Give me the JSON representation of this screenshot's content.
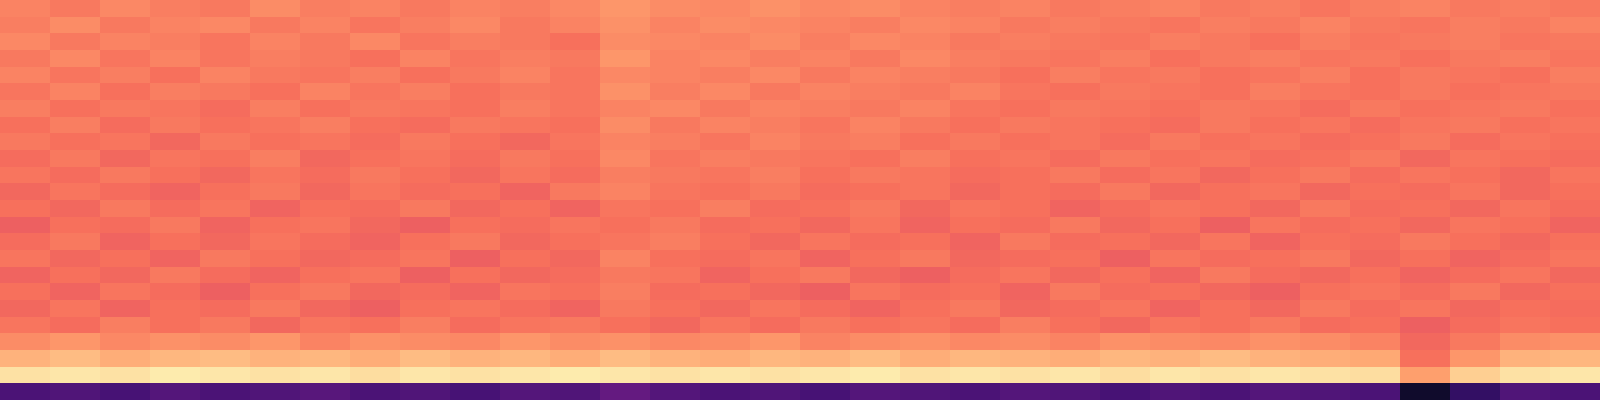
{
  "chart_data": {
    "type": "heatmap",
    "zlim": [
      0,
      1
    ],
    "tick_labels": false,
    "cells": [
      [
        0.24,
        0.25,
        0.23,
        0.26,
        0.24,
        0.25,
        0.27,
        0.24,
        0.25,
        0.23,
        0.26,
        0.25,
        0.3,
        0.26,
        0.24,
        0.25,
        0.23,
        0.26,
        0.25,
        0.24,
        0.26,
        0.25,
        0.23,
        0.25,
        0.24,
        0.26,
        0.25,
        0.24,
        0.08,
        0.18,
        0.25,
        0.24
      ],
      [
        0.94,
        0.95,
        0.94,
        0.96,
        0.95,
        0.94,
        0.95,
        0.93,
        0.95,
        0.94,
        0.95,
        0.96,
        0.95,
        0.94,
        0.95,
        0.94,
        0.95,
        0.96,
        0.94,
        0.95,
        0.94,
        0.95,
        0.93,
        0.95,
        0.94,
        0.95,
        0.94,
        0.93,
        0.8,
        0.9,
        0.94,
        0.95
      ],
      [
        0.84,
        0.86,
        0.83,
        0.85,
        0.86,
        0.84,
        0.85,
        0.83,
        0.86,
        0.84,
        0.85,
        0.83,
        0.86,
        0.84,
        0.83,
        0.85,
        0.84,
        0.86,
        0.83,
        0.85,
        0.84,
        0.83,
        0.85,
        0.84,
        0.86,
        0.84,
        0.83,
        0.82,
        0.7,
        0.78,
        0.84,
        0.85
      ],
      [
        0.76,
        0.78,
        0.75,
        0.77,
        0.76,
        0.78,
        0.74,
        0.77,
        0.76,
        0.75,
        0.78,
        0.76,
        0.77,
        0.75,
        0.76,
        0.78,
        0.74,
        0.76,
        0.77,
        0.75,
        0.76,
        0.74,
        0.77,
        0.76,
        0.75,
        0.77,
        0.76,
        0.74,
        0.68,
        0.72,
        0.76,
        0.77
      ],
      [
        0.71,
        0.69,
        0.73,
        0.7,
        0.72,
        0.68,
        0.71,
        0.7,
        0.73,
        0.69,
        0.71,
        0.72,
        0.7,
        0.68,
        0.71,
        0.69,
        0.72,
        0.7,
        0.71,
        0.69,
        0.73,
        0.7,
        0.68,
        0.71,
        0.7,
        0.72,
        0.69,
        0.7,
        0.66,
        0.69,
        0.71,
        0.7
      ],
      [
        0.68,
        0.71,
        0.67,
        0.7,
        0.69,
        0.72,
        0.68,
        0.66,
        0.7,
        0.71,
        0.69,
        0.67,
        0.72,
        0.7,
        0.68,
        0.71,
        0.69,
        0.67,
        0.7,
        0.72,
        0.68,
        0.69,
        0.71,
        0.67,
        0.7,
        0.68,
        0.72,
        0.69,
        0.71,
        0.68,
        0.7,
        0.69
      ],
      [
        0.7,
        0.67,
        0.71,
        0.69,
        0.66,
        0.7,
        0.72,
        0.68,
        0.69,
        0.67,
        0.71,
        0.7,
        0.73,
        0.69,
        0.7,
        0.68,
        0.66,
        0.71,
        0.69,
        0.7,
        0.67,
        0.72,
        0.69,
        0.7,
        0.68,
        0.66,
        0.7,
        0.71,
        0.69,
        0.72,
        0.68,
        0.7
      ],
      [
        0.67,
        0.7,
        0.68,
        0.72,
        0.69,
        0.67,
        0.7,
        0.71,
        0.66,
        0.7,
        0.68,
        0.69,
        0.72,
        0.71,
        0.67,
        0.7,
        0.72,
        0.68,
        0.66,
        0.69,
        0.71,
        0.68,
        0.7,
        0.67,
        0.72,
        0.69,
        0.68,
        0.7,
        0.67,
        0.69,
        0.71,
        0.68
      ],
      [
        0.71,
        0.68,
        0.7,
        0.67,
        0.72,
        0.7,
        0.68,
        0.69,
        0.71,
        0.66,
        0.7,
        0.68,
        0.74,
        0.7,
        0.69,
        0.71,
        0.67,
        0.7,
        0.72,
        0.68,
        0.69,
        0.7,
        0.66,
        0.71,
        0.69,
        0.7,
        0.72,
        0.68,
        0.7,
        0.67,
        0.69,
        0.71
      ],
      [
        0.69,
        0.72,
        0.67,
        0.7,
        0.68,
        0.71,
        0.69,
        0.67,
        0.7,
        0.72,
        0.68,
        0.7,
        0.71,
        0.73,
        0.7,
        0.68,
        0.71,
        0.69,
        0.7,
        0.67,
        0.72,
        0.69,
        0.7,
        0.68,
        0.71,
        0.67,
        0.7,
        0.69,
        0.72,
        0.7,
        0.68,
        0.7
      ],
      [
        0.66,
        0.7,
        0.69,
        0.72,
        0.67,
        0.7,
        0.71,
        0.68,
        0.66,
        0.7,
        0.69,
        0.71,
        0.7,
        0.72,
        0.69,
        0.7,
        0.68,
        0.71,
        0.67,
        0.7,
        0.69,
        0.72,
        0.68,
        0.7,
        0.66,
        0.71,
        0.69,
        0.7,
        0.68,
        0.71,
        0.7,
        0.67
      ],
      [
        0.7,
        0.68,
        0.72,
        0.69,
        0.71,
        0.67,
        0.7,
        0.69,
        0.72,
        0.68,
        0.7,
        0.67,
        0.71,
        0.7,
        0.73,
        0.69,
        0.7,
        0.72,
        0.68,
        0.71,
        0.7,
        0.67,
        0.69,
        0.71,
        0.7,
        0.68,
        0.72,
        0.69,
        0.7,
        0.68,
        0.71,
        0.69
      ],
      [
        0.68,
        0.71,
        0.69,
        0.67,
        0.7,
        0.72,
        0.68,
        0.71,
        0.69,
        0.7,
        0.67,
        0.72,
        0.74,
        0.71,
        0.7,
        0.72,
        0.69,
        0.7,
        0.71,
        0.68,
        0.7,
        0.69,
        0.72,
        0.68,
        0.7,
        0.71,
        0.68,
        0.7,
        0.69,
        0.71,
        0.68,
        0.7
      ],
      [
        0.71,
        0.69,
        0.72,
        0.7,
        0.68,
        0.71,
        0.69,
        0.72,
        0.7,
        0.68,
        0.71,
        0.69,
        0.73,
        0.72,
        0.71,
        0.73,
        0.7,
        0.72,
        0.71,
        0.69,
        0.7,
        0.72,
        0.69,
        0.71,
        0.68,
        0.7,
        0.72,
        0.69,
        0.71,
        0.7,
        0.68,
        0.71
      ],
      [
        0.69,
        0.72,
        0.68,
        0.71,
        0.7,
        0.73,
        0.68,
        0.7,
        0.71,
        0.69,
        0.72,
        0.7,
        0.75,
        0.71,
        0.73,
        0.72,
        0.71,
        0.7,
        0.73,
        0.7,
        0.71,
        0.69,
        0.72,
        0.7,
        0.71,
        0.69,
        0.7,
        0.72,
        0.68,
        0.71,
        0.7,
        0.69
      ],
      [
        0.72,
        0.7,
        0.71,
        0.68,
        0.72,
        0.7,
        0.71,
        0.69,
        0.72,
        0.7,
        0.68,
        0.71,
        0.74,
        0.73,
        0.71,
        0.74,
        0.72,
        0.73,
        0.7,
        0.72,
        0.7,
        0.71,
        0.69,
        0.72,
        0.7,
        0.71,
        0.69,
        0.7,
        0.72,
        0.69,
        0.71,
        0.7
      ],
      [
        0.7,
        0.73,
        0.69,
        0.72,
        0.7,
        0.71,
        0.73,
        0.7,
        0.69,
        0.72,
        0.71,
        0.7,
        0.76,
        0.72,
        0.74,
        0.73,
        0.71,
        0.74,
        0.72,
        0.7,
        0.72,
        0.71,
        0.7,
        0.69,
        0.72,
        0.7,
        0.71,
        0.69,
        0.71,
        0.72,
        0.7,
        0.71
      ],
      [
        0.73,
        0.7,
        0.72,
        0.71,
        0.69,
        0.73,
        0.7,
        0.72,
        0.71,
        0.7,
        0.73,
        0.71,
        0.74,
        0.75,
        0.72,
        0.74,
        0.73,
        0.72,
        0.74,
        0.71,
        0.7,
        0.72,
        0.71,
        0.7,
        0.72,
        0.71,
        0.69,
        0.72,
        0.7,
        0.71,
        0.72,
        0.7
      ],
      [
        0.71,
        0.74,
        0.7,
        0.73,
        0.72,
        0.7,
        0.74,
        0.71,
        0.73,
        0.7,
        0.72,
        0.71,
        0.77,
        0.73,
        0.75,
        0.72,
        0.74,
        0.73,
        0.72,
        0.74,
        0.71,
        0.7,
        0.72,
        0.71,
        0.7,
        0.73,
        0.71,
        0.7,
        0.72,
        0.7,
        0.71,
        0.72
      ],
      [
        0.74,
        0.71,
        0.73,
        0.7,
        0.74,
        0.72,
        0.71,
        0.73,
        0.7,
        0.72,
        0.74,
        0.71,
        0.75,
        0.74,
        0.73,
        0.75,
        0.72,
        0.74,
        0.73,
        0.72,
        0.7,
        0.73,
        0.71,
        0.72,
        0.7,
        0.71,
        0.73,
        0.7,
        0.72,
        0.71,
        0.7,
        0.73
      ],
      [
        0.72,
        0.75,
        0.71,
        0.74,
        0.71,
        0.73,
        0.72,
        0.7,
        0.74,
        0.71,
        0.73,
        0.72,
        0.78,
        0.74,
        0.75,
        0.73,
        0.74,
        0.72,
        0.75,
        0.73,
        0.72,
        0.71,
        0.73,
        0.7,
        0.72,
        0.73,
        0.71,
        0.72,
        0.7,
        0.72,
        0.73,
        0.71
      ],
      [
        0.75,
        0.72,
        0.74,
        0.73,
        0.71,
        0.74,
        0.72,
        0.75,
        0.71,
        0.73,
        0.72,
        0.7,
        0.76,
        0.75,
        0.74,
        0.76,
        0.73,
        0.75,
        0.74,
        0.72,
        0.73,
        0.72,
        0.71,
        0.73,
        0.72,
        0.7,
        0.73,
        0.71,
        0.72,
        0.73,
        0.71,
        0.72
      ],
      [
        0.73,
        0.76,
        0.72,
        0.74,
        0.75,
        0.72,
        0.74,
        0.71,
        0.73,
        0.75,
        0.72,
        0.74,
        0.77,
        0.74,
        0.76,
        0.75,
        0.74,
        0.73,
        0.75,
        0.74,
        0.72,
        0.73,
        0.72,
        0.71,
        0.73,
        0.72,
        0.74,
        0.72,
        0.71,
        0.73,
        0.72,
        0.74
      ],
      [
        0.74,
        0.72,
        0.75,
        0.73,
        0.72,
        0.76,
        0.73,
        0.74,
        0.72,
        0.74,
        0.73,
        0.75,
        0.78,
        0.76,
        0.75,
        0.77,
        0.75,
        0.76,
        0.74,
        0.73,
        0.74,
        0.72,
        0.73,
        0.74,
        0.72,
        0.73,
        0.71,
        0.73,
        0.74,
        0.72,
        0.73,
        0.72
      ]
    ]
  }
}
